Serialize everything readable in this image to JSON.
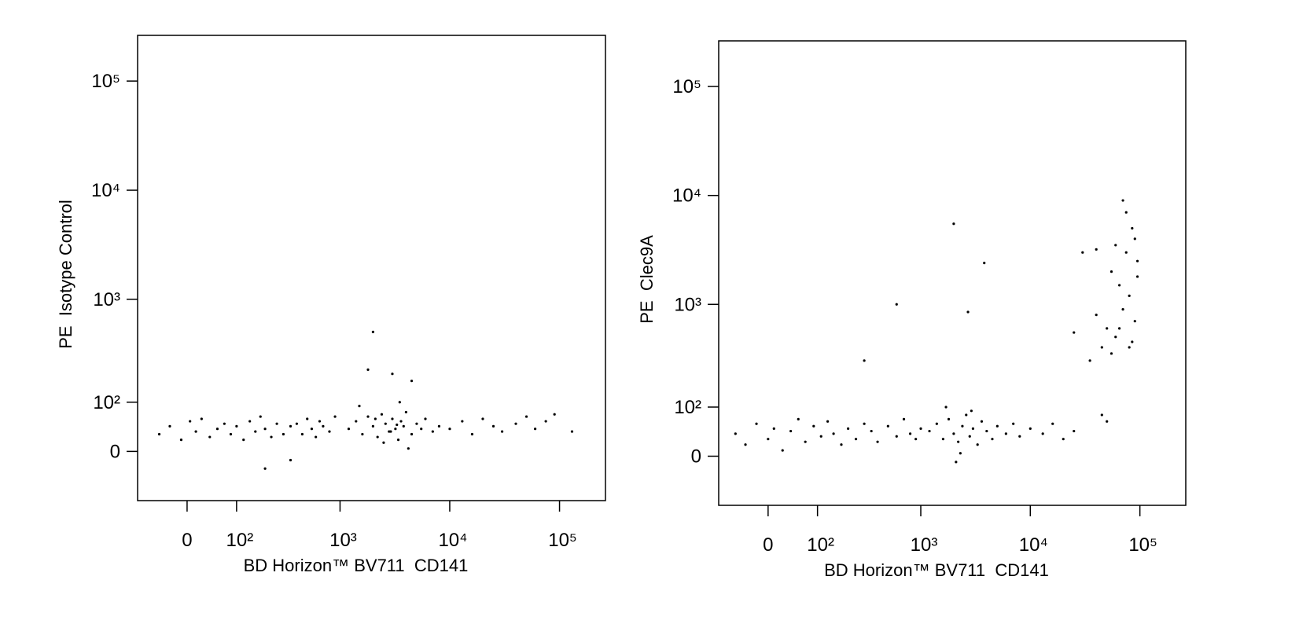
{
  "chart_data": [
    {
      "type": "scatter",
      "xlabel": "BD Horizon™ BV711  CD141",
      "ylabel": "PE  Isotype Control",
      "xscale": "biexponential",
      "yscale": "biexponential",
      "color": "#000000",
      "xlim": [
        -100,
        262144
      ],
      "ylim": [
        -100,
        262144
      ],
      "xticks": [
        0,
        {
          "value": 100,
          "label": "10²"
        },
        {
          "value": 1000,
          "label": "10³"
        },
        {
          "value": 10000,
          "label": "10⁴"
        },
        {
          "value": 100000,
          "label": "10⁵"
        }
      ],
      "yticks": [
        0,
        {
          "value": 100,
          "label": "10²"
        },
        {
          "value": 1000,
          "label": "10³"
        },
        {
          "value": 10000,
          "label": "10⁴"
        },
        {
          "value": 100000,
          "label": "10⁵"
        }
      ],
      "x": [
        -50,
        -30,
        -10,
        5,
        15,
        25,
        40,
        55,
        70,
        85,
        100,
        120,
        140,
        160,
        180,
        200,
        230,
        260,
        300,
        350,
        400,
        450,
        500,
        550,
        600,
        650,
        700,
        800,
        900,
        1200,
        1400,
        1600,
        1800,
        2000,
        2200,
        2400,
        2600,
        2800,
        3000,
        3200,
        3400,
        3600,
        3800,
        4000,
        4500,
        5000,
        5500,
        6000,
        7000,
        8000,
        1500,
        2500,
        3500,
        4200,
        2100,
        2900,
        3300,
        2000,
        1800,
        3000,
        4500,
        200,
        350,
        10000,
        13000,
        16000,
        20000,
        25000,
        30000,
        40000,
        50000,
        60000,
        75000,
        90000,
        130000
      ],
      "y": [
        30,
        45,
        20,
        55,
        35,
        60,
        25,
        40,
        50,
        30,
        45,
        20,
        55,
        35,
        65,
        40,
        25,
        50,
        30,
        45,
        50,
        30,
        60,
        40,
        25,
        55,
        45,
        35,
        65,
        40,
        55,
        30,
        65,
        45,
        25,
        70,
        50,
        35,
        60,
        40,
        20,
        55,
        45,
        75,
        30,
        50,
        40,
        60,
        35,
        45,
        90,
        15,
        100,
        5,
        60,
        35,
        48,
        500,
        220,
        200,
        170,
        -30,
        -15,
        40,
        55,
        30,
        60,
        45,
        35,
        50,
        65,
        40,
        55,
        70,
        35
      ]
    },
    {
      "type": "scatter",
      "xlabel": "BD Horizon™ BV711  CD141",
      "ylabel": "PE  Clec9A",
      "xscale": "biexponential",
      "yscale": "biexponential",
      "color": "#000000",
      "xlim": [
        -100,
        262144
      ],
      "ylim": [
        -100,
        262144
      ],
      "xticks": [
        0,
        {
          "value": 100,
          "label": "10²"
        },
        {
          "value": 1000,
          "label": "10³"
        },
        {
          "value": 10000,
          "label": "10⁴"
        },
        {
          "value": 100000,
          "label": "10⁵"
        }
      ],
      "yticks": [
        0,
        {
          "value": 100,
          "label": "10²"
        },
        {
          "value": 1000,
          "label": "10³"
        },
        {
          "value": 10000,
          "label": "10⁴"
        },
        {
          "value": 100000,
          "label": "10⁵"
        }
      ],
      "x": [
        -60,
        -40,
        -20,
        0,
        10,
        25,
        40,
        55,
        70,
        90,
        110,
        130,
        150,
        180,
        210,
        250,
        300,
        350,
        400,
        500,
        600,
        700,
        800,
        900,
        1000,
        1200,
        1400,
        1600,
        1800,
        2000,
        2200,
        2400,
        2600,
        2800,
        3000,
        3300,
        3600,
        4000,
        4500,
        5000,
        6000,
        7000,
        8000,
        1700,
        2300,
        2900,
        2100,
        10000,
        13000,
        16000,
        20000,
        25000,
        2000,
        3800,
        2700,
        600,
        300,
        70000,
        75000,
        85000,
        90000,
        60000,
        95000,
        55000,
        65000,
        80000,
        70000,
        90000,
        50000,
        60000,
        85000,
        40000,
        45000,
        35000,
        55000,
        30000,
        40000,
        75000,
        95000,
        65000,
        25000,
        80000,
        50000,
        45000
      ],
      "y": [
        40,
        20,
        60,
        30,
        50,
        10,
        45,
        70,
        25,
        55,
        35,
        65,
        40,
        20,
        50,
        30,
        60,
        45,
        25,
        55,
        35,
        70,
        40,
        30,
        50,
        45,
        60,
        30,
        70,
        40,
        25,
        55,
        80,
        35,
        50,
        20,
        65,
        45,
        30,
        55,
        40,
        60,
        35,
        100,
        5,
        90,
        -10,
        50,
        40,
        60,
        30,
        45,
        5500,
        2400,
        850,
        1000,
        300,
        9000,
        7000,
        5000,
        4000,
        3500,
        2500,
        2000,
        1500,
        1200,
        900,
        700,
        600,
        500,
        450,
        800,
        400,
        300,
        350,
        3000,
        3200,
        3000,
        1800,
        600,
        550,
        400,
        65,
        80
      ]
    }
  ]
}
